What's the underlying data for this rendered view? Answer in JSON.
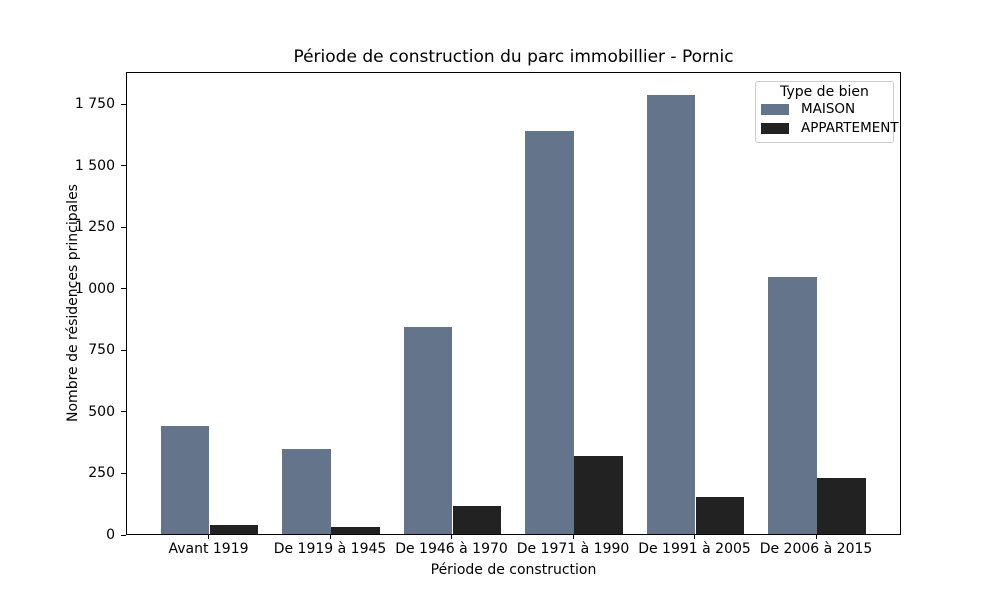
{
  "chart_data": {
    "type": "bar",
    "title": "Période de construction du parc immobillier - Pornic",
    "xlabel": "Période de construction",
    "ylabel": "Nombre de résidences principales",
    "categories": [
      "Avant 1919",
      "De 1919 à 1945",
      "De 1946 à 1970",
      "De 1971 à 1990",
      "De 1991 à 2005",
      "De 2006 à 2015"
    ],
    "series": [
      {
        "name": "MAISON",
        "color": "#64748b",
        "values": [
          440,
          345,
          845,
          1645,
          1790,
          1050
        ]
      },
      {
        "name": "APPARTEMENT",
        "color": "#222222",
        "values": [
          35,
          30,
          115,
          320,
          150,
          230
        ]
      }
    ],
    "ylim": [
      0,
      1880
    ],
    "yticks": [
      0,
      250,
      500,
      750,
      1000,
      1250,
      1500,
      1750
    ],
    "ytick_labels": [
      "0",
      "250",
      "500",
      "750",
      "1 000",
      "1 250",
      "1 500",
      "1 750"
    ],
    "legend": {
      "title": "Type de bien",
      "entries": [
        "MAISON",
        "APPARTEMENT"
      ],
      "position": "upper right"
    },
    "grid": false,
    "background": "#ffffff"
  }
}
